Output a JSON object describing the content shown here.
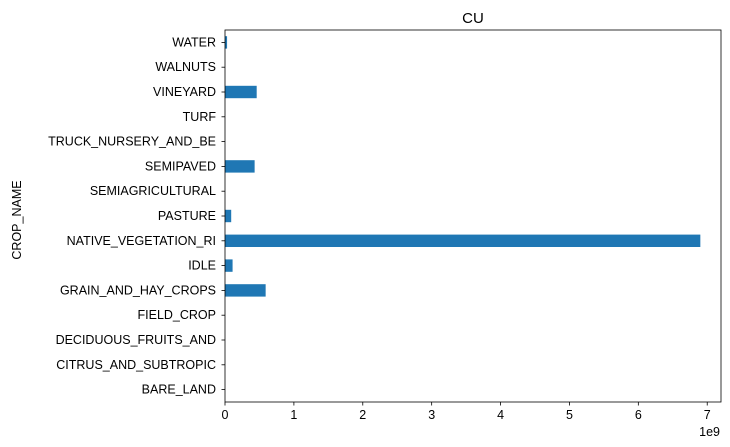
{
  "chart_data": {
    "type": "bar",
    "orientation": "horizontal",
    "title": "CU",
    "xlabel": "",
    "ylabel": "CROP_NAME",
    "x_offset_label": "1e9",
    "x_scale": 1000000000,
    "xlim": [
      0,
      7.2
    ],
    "xticks": [
      0,
      1,
      2,
      3,
      4,
      5,
      6,
      7
    ],
    "grid": false,
    "legend": "none",
    "bar_color": "#1f77b4",
    "categories": [
      "BARE_LAND",
      "CITRUS_AND_SUBTROPIC",
      "DECIDUOUS_FRUITS_AND",
      "FIELD_CROP",
      "GRAIN_AND_HAY_CROPS",
      "IDLE",
      "NATIVE_VEGETATION_RI",
      "PASTURE",
      "SEMIAGRICULTURAL",
      "SEMIPAVED",
      "TRUCK_NURSERY_AND_BE",
      "TURF",
      "VINEYARD",
      "WALNUTS",
      "WATER"
    ],
    "values": [
      0.0,
      0.0,
      0.0,
      0.0,
      0.59,
      0.11,
      6.9,
      0.09,
      0.0,
      0.43,
      0.0,
      0.0,
      0.46,
      0.0,
      0.03
    ]
  }
}
